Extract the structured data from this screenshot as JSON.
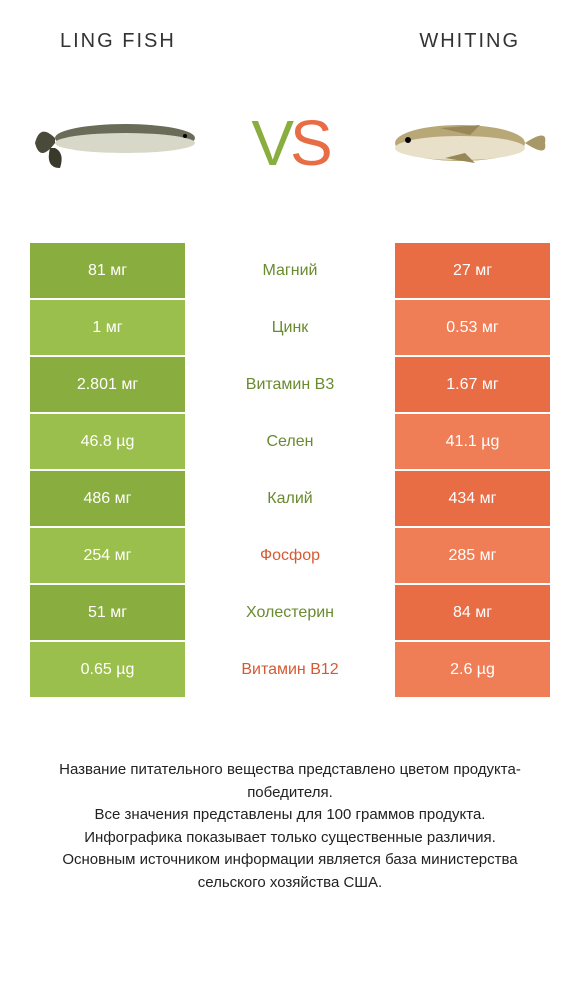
{
  "colors": {
    "green_dark": "#8aad3f",
    "green_light": "#9bbf4d",
    "orange_dark": "#e86c44",
    "orange_light": "#ef7e57",
    "text_green": "#6a8a2f",
    "text_orange": "#d45a33",
    "white": "#ffffff"
  },
  "header": {
    "left": "LING FISH",
    "right": "WHITING"
  },
  "vs": {
    "v": "V",
    "s": "S"
  },
  "rows": [
    {
      "left": "81 мг",
      "mid": "Магний",
      "right": "27 мг",
      "winner": "left"
    },
    {
      "left": "1 мг",
      "mid": "Цинк",
      "right": "0.53 мг",
      "winner": "left"
    },
    {
      "left": "2.801 мг",
      "mid": "Витамин B3",
      "right": "1.67 мг",
      "winner": "left"
    },
    {
      "left": "46.8 µg",
      "mid": "Селен",
      "right": "41.1 µg",
      "winner": "left"
    },
    {
      "left": "486 мг",
      "mid": "Калий",
      "right": "434 мг",
      "winner": "left"
    },
    {
      "left": "254 мг",
      "mid": "Фосфор",
      "right": "285 мг",
      "winner": "right"
    },
    {
      "left": "51 мг",
      "mid": "Холестерин",
      "right": "84 мг",
      "winner": "left"
    },
    {
      "left": "0.65 µg",
      "mid": "Витамин B12",
      "right": "2.6 µg",
      "winner": "right"
    }
  ],
  "footer": {
    "line1": "Название питательного вещества представлено цветом продукта-победителя.",
    "line2": "Все значения представлены для 100 граммов продукта.",
    "line3": "Инфографика показывает только существенные различия.",
    "line4": "Основным источником информации является база министерства сельского хозяйства США."
  }
}
